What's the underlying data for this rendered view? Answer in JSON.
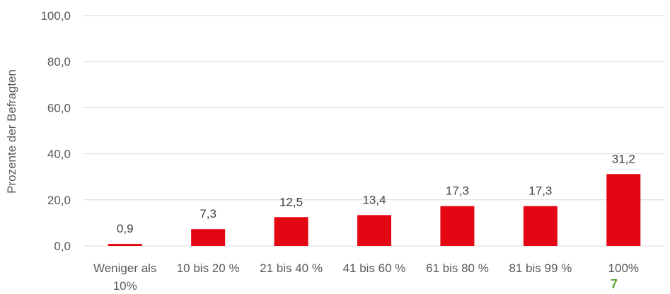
{
  "chart_data": {
    "type": "bar",
    "categories": [
      [
        "Weniger als",
        "10%"
      ],
      [
        "10 bis 20 %"
      ],
      [
        "21 bis 40 %"
      ],
      [
        "41 bis 60 %"
      ],
      [
        "61 bis 80 %"
      ],
      [
        "81 bis 99 %"
      ],
      [
        "100%"
      ]
    ],
    "values": [
      0.9,
      7.3,
      12.5,
      13.4,
      17.3,
      17.3,
      31.2
    ],
    "value_labels": [
      "0,9",
      "7,3",
      "12,5",
      "13,4",
      "17,3",
      "17,3",
      "31,2"
    ],
    "title": "",
    "xlabel": "",
    "ylabel": "Prozente der Befragten",
    "ylim": [
      0,
      100
    ],
    "yticks": [
      0,
      20,
      40,
      60,
      80,
      100
    ],
    "ytick_labels": [
      "0,0",
      "20,0",
      "40,0",
      "60,0",
      "80,0",
      "100,0"
    ],
    "grid": true,
    "legend": "none",
    "bar_color": "#e30613",
    "annotation": "7"
  }
}
